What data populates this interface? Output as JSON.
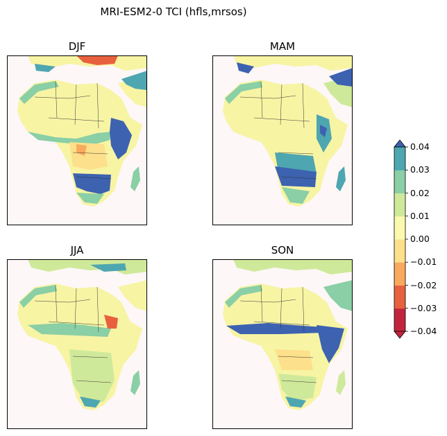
{
  "figure": {
    "title": "MRI-ESM2-0 TCI (hfls,mrsos)",
    "panels": [
      {
        "id": "djf",
        "title": "DJF"
      },
      {
        "id": "mam",
        "title": "MAM"
      },
      {
        "id": "jja",
        "title": "JJA"
      },
      {
        "id": "son",
        "title": "SON"
      }
    ]
  },
  "colorbar": {
    "tick_labels": [
      "0.04",
      "0.03",
      "0.02",
      "0.01",
      "0.00",
      "−0.01",
      "−0.02",
      "−0.03",
      "−0.04"
    ],
    "colors": [
      "#c2243f",
      "#e8613f",
      "#f9aa5c",
      "#fde08b",
      "#fbf9ad",
      "#cfe99a",
      "#8acfa5",
      "#4ea6b0",
      "#3c62b0"
    ],
    "extend": "both"
  },
  "colors": {
    "ocean": "#fdf7f7",
    "land_default": "#f7f4a4",
    "border": "#333333"
  }
}
